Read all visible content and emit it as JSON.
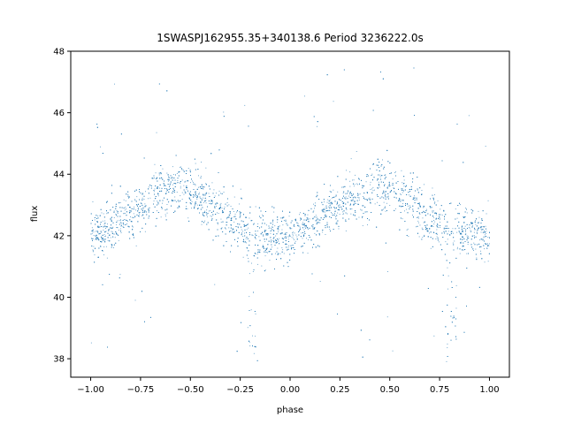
{
  "chart_data": {
    "type": "scatter",
    "title": "1SWASPJ162955.35+340138.6 Period 3236222.0s",
    "xlabel": "phase",
    "ylabel": "flux",
    "xlim": [
      -1.1,
      1.1
    ],
    "ylim": [
      37.4,
      48.0
    ],
    "xticks": [
      -1.0,
      -0.75,
      -0.5,
      -0.25,
      0.0,
      0.25,
      0.5,
      0.75,
      1.0
    ],
    "xtick_labels": [
      "−1.00",
      "−0.75",
      "−0.50",
      "−0.25",
      "0.00",
      "0.25",
      "0.50",
      "0.75",
      "1.00"
    ],
    "yticks": [
      38,
      40,
      42,
      44,
      46,
      48
    ],
    "ytick_labels": [
      "38",
      "40",
      "42",
      "44",
      "46",
      "48"
    ],
    "grid": false,
    "marker_color": "#1f77b4",
    "series": [
      {
        "phase_range": [
          -1.0,
          1.0
        ],
        "profile_x": [
          -1.0,
          -0.9,
          -0.8,
          -0.7,
          -0.6,
          -0.55,
          -0.5,
          -0.4,
          -0.3,
          -0.2,
          -0.1,
          0.0,
          0.1,
          0.2,
          0.3,
          0.4,
          0.45,
          0.5,
          0.6,
          0.7,
          0.8,
          0.9,
          1.0
        ],
        "profile_mean": [
          42.0,
          42.3,
          42.7,
          43.2,
          43.6,
          43.7,
          43.5,
          43.0,
          42.5,
          42.0,
          42.0,
          42.0,
          42.4,
          42.8,
          43.2,
          43.5,
          43.7,
          43.6,
          43.1,
          42.6,
          42.2,
          42.1,
          42.0
        ],
        "profile_band_upper": [
          43.4,
          43.7,
          44.1,
          44.6,
          45.1,
          45.2,
          45.0,
          44.3,
          43.8,
          43.3,
          43.3,
          43.2,
          43.6,
          44.0,
          44.5,
          45.0,
          45.2,
          45.1,
          44.5,
          44.0,
          43.6,
          43.5,
          43.4
        ],
        "profile_band_lower": [
          40.6,
          40.8,
          41.2,
          41.7,
          42.0,
          42.1,
          41.9,
          41.5,
          41.0,
          40.3,
          40.4,
          40.6,
          41.0,
          41.4,
          41.8,
          42.0,
          42.1,
          42.0,
          41.6,
          41.1,
          40.4,
          40.6,
          40.6
        ],
        "eclipse_dips": [
          -0.19,
          0.81
        ],
        "eclipse_min_flux": 37.9,
        "outlier_range": [
          37.9,
          47.5
        ]
      }
    ]
  }
}
